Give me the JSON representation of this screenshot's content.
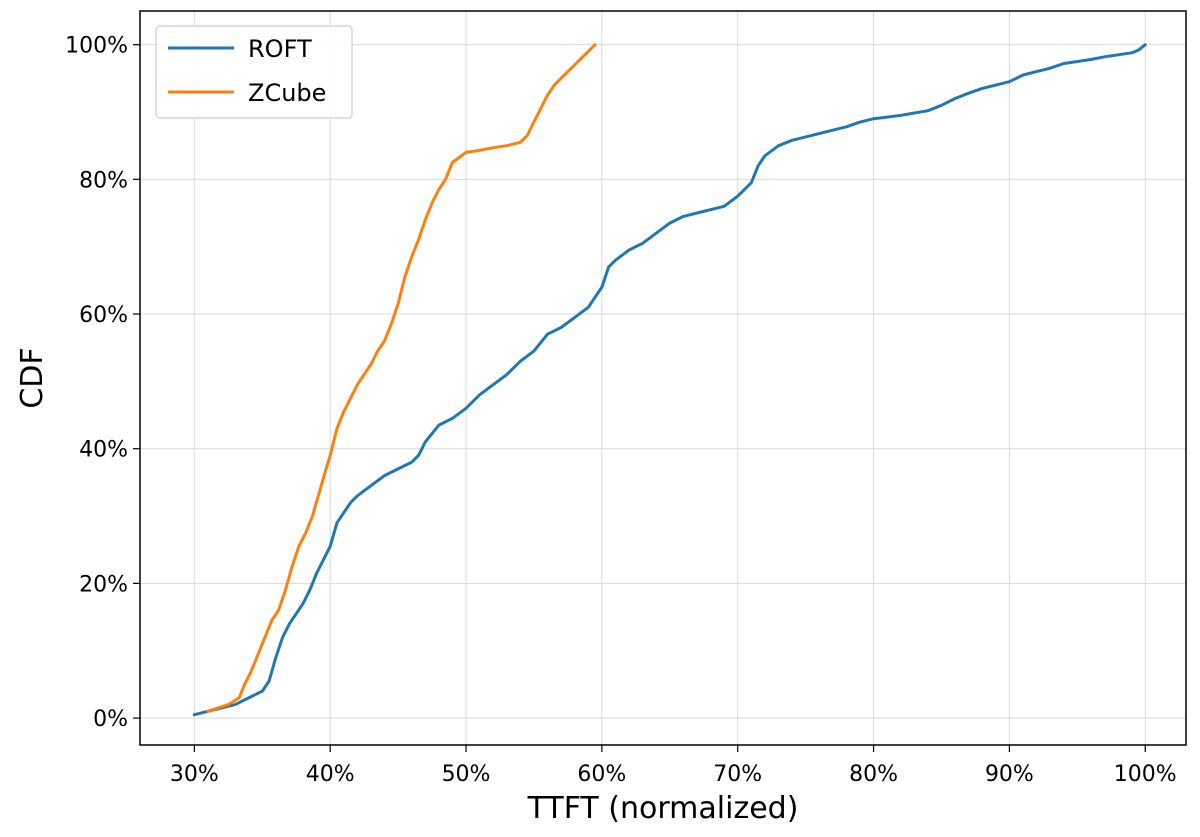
{
  "chart_data": {
    "type": "line",
    "title": "",
    "xlabel": "TTFT (normalized)",
    "ylabel": "CDF",
    "xlim": [
      0.26,
      1.03
    ],
    "ylim": [
      -0.04,
      1.05
    ],
    "xticks": [
      0.3,
      0.4,
      0.5,
      0.6,
      0.7,
      0.8,
      0.9,
      1.0
    ],
    "xtick_labels": [
      "30%",
      "40%",
      "50%",
      "60%",
      "70%",
      "80%",
      "90%",
      "100%"
    ],
    "yticks": [
      0.0,
      0.2,
      0.4,
      0.6,
      0.8,
      1.0
    ],
    "ytick_labels": [
      "0%",
      "20%",
      "40%",
      "60%",
      "80%",
      "100%"
    ],
    "grid": true,
    "legend_position": "top-left",
    "series": [
      {
        "name": "ROFT",
        "color": "#1f77b4",
        "x": [
          0.3,
          0.31,
          0.33,
          0.34,
          0.35,
          0.355,
          0.36,
          0.365,
          0.37,
          0.375,
          0.38,
          0.385,
          0.39,
          0.395,
          0.4,
          0.405,
          0.41,
          0.415,
          0.42,
          0.43,
          0.44,
          0.45,
          0.46,
          0.465,
          0.47,
          0.48,
          0.49,
          0.5,
          0.51,
          0.52,
          0.53,
          0.54,
          0.55,
          0.56,
          0.57,
          0.58,
          0.59,
          0.6,
          0.605,
          0.61,
          0.62,
          0.63,
          0.64,
          0.65,
          0.66,
          0.67,
          0.68,
          0.69,
          0.7,
          0.71,
          0.715,
          0.72,
          0.73,
          0.74,
          0.75,
          0.76,
          0.77,
          0.78,
          0.79,
          0.8,
          0.82,
          0.84,
          0.85,
          0.86,
          0.87,
          0.88,
          0.89,
          0.9,
          0.91,
          0.92,
          0.93,
          0.94,
          0.95,
          0.96,
          0.97,
          0.98,
          0.99,
          0.995,
          1.0
        ],
        "y": [
          0.005,
          0.01,
          0.02,
          0.03,
          0.04,
          0.055,
          0.09,
          0.12,
          0.14,
          0.155,
          0.17,
          0.19,
          0.215,
          0.235,
          0.255,
          0.29,
          0.305,
          0.32,
          0.33,
          0.345,
          0.36,
          0.37,
          0.38,
          0.39,
          0.41,
          0.435,
          0.445,
          0.46,
          0.48,
          0.495,
          0.51,
          0.53,
          0.545,
          0.57,
          0.58,
          0.595,
          0.61,
          0.64,
          0.67,
          0.68,
          0.695,
          0.705,
          0.72,
          0.735,
          0.745,
          0.75,
          0.755,
          0.76,
          0.775,
          0.795,
          0.82,
          0.835,
          0.85,
          0.858,
          0.863,
          0.868,
          0.873,
          0.878,
          0.885,
          0.89,
          0.895,
          0.902,
          0.91,
          0.92,
          0.928,
          0.935,
          0.94,
          0.945,
          0.955,
          0.96,
          0.965,
          0.972,
          0.975,
          0.978,
          0.982,
          0.985,
          0.988,
          0.992,
          1.0
        ]
      },
      {
        "name": "ZCube",
        "color": "#ff7f0e",
        "x": [
          0.31,
          0.325,
          0.333,
          0.337,
          0.342,
          0.347,
          0.352,
          0.357,
          0.362,
          0.367,
          0.372,
          0.377,
          0.382,
          0.387,
          0.392,
          0.397,
          0.4,
          0.405,
          0.41,
          0.415,
          0.42,
          0.425,
          0.43,
          0.435,
          0.44,
          0.445,
          0.45,
          0.455,
          0.46,
          0.465,
          0.47,
          0.475,
          0.48,
          0.485,
          0.49,
          0.5,
          0.51,
          0.52,
          0.53,
          0.54,
          0.545,
          0.55,
          0.555,
          0.56,
          0.565,
          0.57,
          0.575,
          0.58,
          0.585,
          0.59,
          0.595
        ],
        "y": [
          0.01,
          0.02,
          0.03,
          0.05,
          0.07,
          0.095,
          0.12,
          0.145,
          0.16,
          0.19,
          0.225,
          0.255,
          0.275,
          0.3,
          0.335,
          0.37,
          0.39,
          0.43,
          0.455,
          0.475,
          0.495,
          0.51,
          0.525,
          0.545,
          0.56,
          0.585,
          0.615,
          0.655,
          0.685,
          0.71,
          0.74,
          0.765,
          0.785,
          0.8,
          0.825,
          0.84,
          0.843,
          0.847,
          0.85,
          0.855,
          0.865,
          0.885,
          0.905,
          0.925,
          0.94,
          0.95,
          0.96,
          0.97,
          0.98,
          0.99,
          1.0
        ]
      }
    ]
  }
}
